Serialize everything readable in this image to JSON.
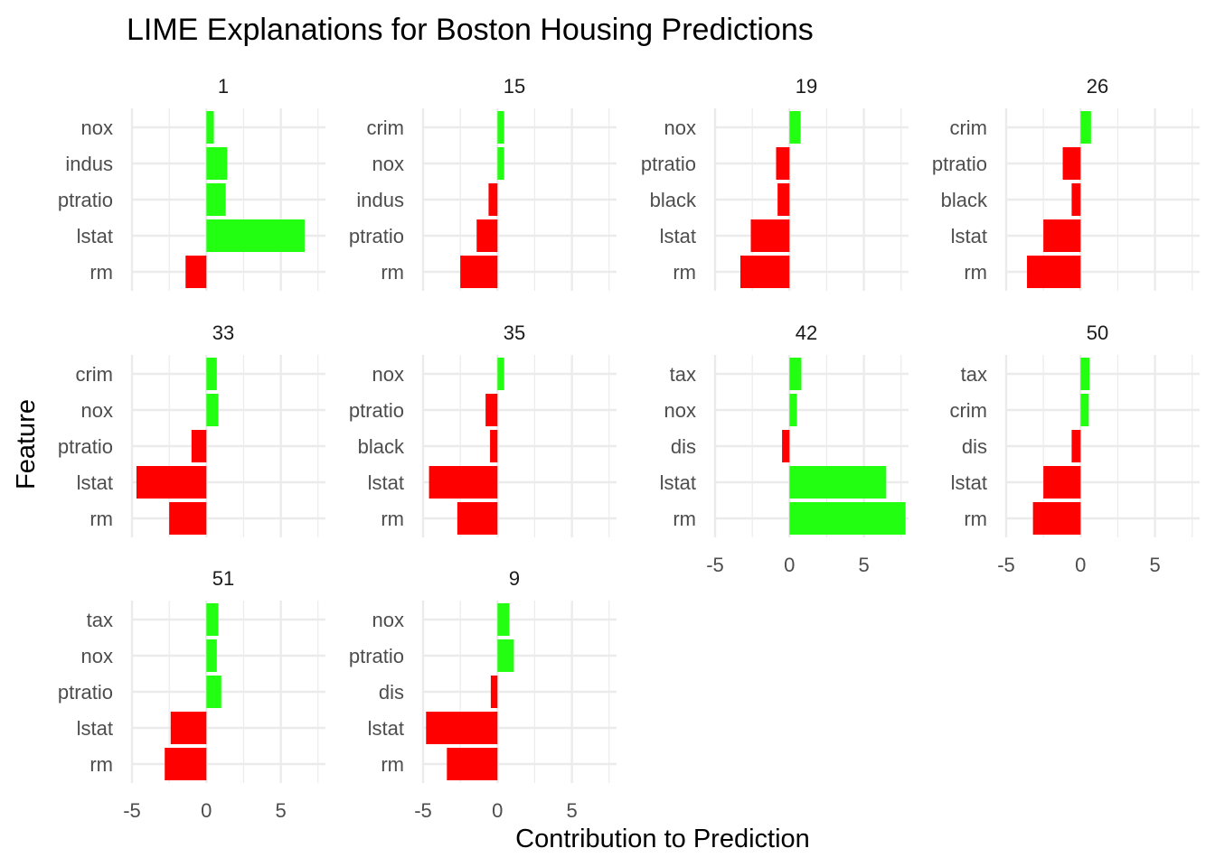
{
  "chart_data": {
    "type": "bar",
    "orientation": "horizontal",
    "title": "LIME Explanations for Boston Housing Predictions",
    "xlabel": "Contribution to Prediction",
    "ylabel": "Feature",
    "xlim": [
      -5,
      8
    ],
    "x_ticks": [
      -5,
      0,
      5
    ],
    "colors": {
      "positive": "#22ff11",
      "negative": "#ff0000",
      "grid": "#ebebeb"
    },
    "grid": true,
    "facets": [
      {
        "label": "1",
        "features": [
          "nox",
          "indus",
          "ptratio",
          "lstat",
          "rm"
        ],
        "values": [
          0.5,
          1.4,
          1.3,
          6.6,
          -1.4
        ]
      },
      {
        "label": "15",
        "features": [
          "crim",
          "nox",
          "indus",
          "ptratio",
          "rm"
        ],
        "values": [
          0.45,
          0.45,
          -0.6,
          -1.4,
          -2.5
        ]
      },
      {
        "label": "19",
        "features": [
          "nox",
          "ptratio",
          "black",
          "lstat",
          "rm"
        ],
        "values": [
          0.75,
          -0.9,
          -0.8,
          -2.6,
          -3.3
        ]
      },
      {
        "label": "26",
        "features": [
          "crim",
          "ptratio",
          "black",
          "lstat",
          "rm"
        ],
        "values": [
          0.7,
          -1.2,
          -0.6,
          -2.5,
          -3.6
        ]
      },
      {
        "label": "33",
        "features": [
          "crim",
          "nox",
          "ptratio",
          "lstat",
          "rm"
        ],
        "values": [
          0.7,
          0.8,
          -1.0,
          -4.7,
          -2.5
        ]
      },
      {
        "label": "35",
        "features": [
          "nox",
          "ptratio",
          "black",
          "lstat",
          "rm"
        ],
        "values": [
          0.45,
          -0.8,
          -0.5,
          -4.6,
          -2.7
        ]
      },
      {
        "label": "42",
        "features": [
          "tax",
          "nox",
          "dis",
          "lstat",
          "rm"
        ],
        "values": [
          0.8,
          0.5,
          -0.5,
          6.5,
          7.8
        ]
      },
      {
        "label": "50",
        "features": [
          "tax",
          "crim",
          "dis",
          "lstat",
          "rm"
        ],
        "values": [
          0.6,
          0.55,
          -0.6,
          -2.5,
          -3.2
        ]
      },
      {
        "label": "51",
        "features": [
          "tax",
          "nox",
          "ptratio",
          "lstat",
          "rm"
        ],
        "values": [
          0.8,
          0.7,
          1.0,
          -2.4,
          -2.8
        ]
      },
      {
        "label": "9",
        "features": [
          "nox",
          "ptratio",
          "dis",
          "lstat",
          "rm"
        ],
        "values": [
          0.8,
          1.1,
          -0.45,
          -4.8,
          -3.4
        ]
      }
    ]
  }
}
